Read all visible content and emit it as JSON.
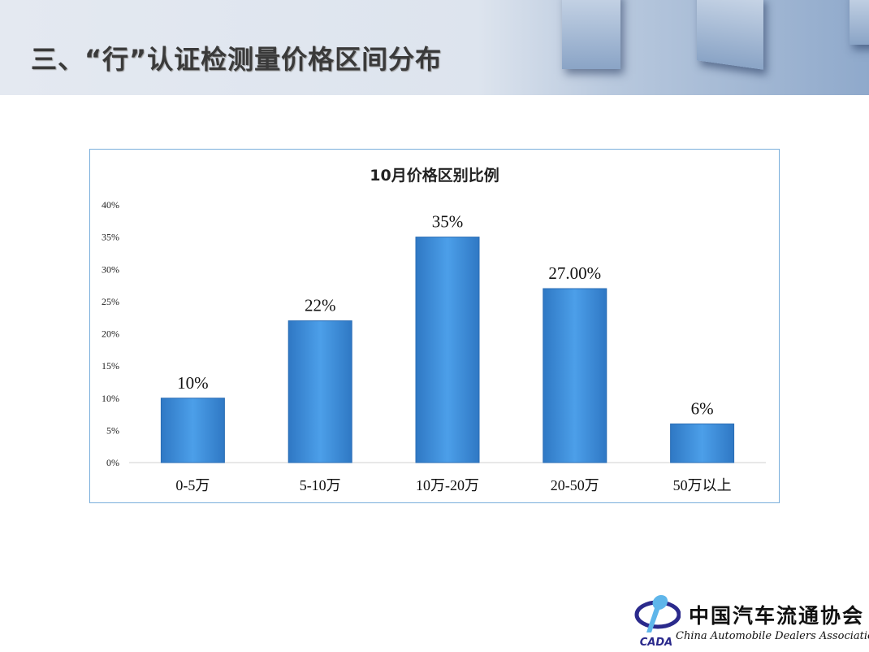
{
  "header": {
    "title": "三、“行”认证检测量价格区间分布"
  },
  "chart_data": {
    "type": "bar",
    "title": "10月价格区别比例",
    "categories": [
      "0-5万",
      "5-10万",
      "10万-20万",
      "20-50万",
      "50万以上"
    ],
    "values": [
      10,
      22,
      35,
      27,
      6
    ],
    "data_labels": [
      "10%",
      "22%",
      "35%",
      "27.00%",
      "6%"
    ],
    "ylim": [
      0,
      40
    ],
    "yticks": [
      "0%",
      "5%",
      "10%",
      "15%",
      "20%",
      "25%",
      "30%",
      "35%",
      "40%"
    ],
    "grid": false,
    "bar_color": "#4a9de8",
    "xlabel": "",
    "ylabel": ""
  },
  "logo": {
    "name_cn": "中国汽车流通协会",
    "name_en": "China Automobile Dealers Association",
    "abbr": "CADA"
  }
}
